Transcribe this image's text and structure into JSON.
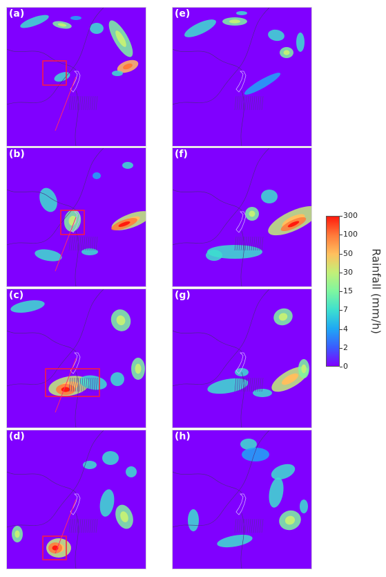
{
  "panels": [
    {
      "label": "(a)"
    },
    {
      "label": "(e)"
    },
    {
      "label": "(b)"
    },
    {
      "label": "(f)"
    },
    {
      "label": "(c)"
    },
    {
      "label": "(g)"
    },
    {
      "label": "(d)"
    },
    {
      "label": "(h)"
    }
  ],
  "colorbar": {
    "title": "Rainfall (mm/h)",
    "ticks": [
      "300",
      "100",
      "50",
      "30",
      "15",
      "7",
      "4",
      "2",
      "0"
    ],
    "colors": [
      "#8000ff",
      "#3a5cff",
      "#1fa8f4",
      "#3ddfcf",
      "#7ef6a0",
      "#c2f078",
      "#ffbf5e",
      "#ff7a3a",
      "#ff1a0d"
    ]
  },
  "chart_data": {
    "type": "heatmap",
    "description_variable": "Rainfall (mm/h)",
    "panels": [
      "(a)",
      "(b)",
      "(c)",
      "(d)",
      "(e)",
      "(f)",
      "(g)",
      "(h)"
    ],
    "color_scale_levels": [
      0,
      2,
      4,
      7,
      15,
      30,
      50,
      100,
      300
    ]
  }
}
